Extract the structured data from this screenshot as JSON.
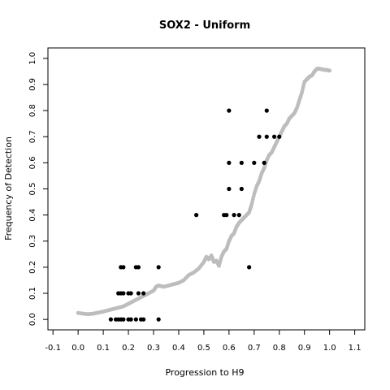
{
  "chart_data": {
    "type": "scatter",
    "title": "SOX2 - Uniform",
    "xlabel": "Progression to H9",
    "ylabel": "Frequency of Detection",
    "xlim": [
      -0.12,
      1.14
    ],
    "ylim": [
      -0.04,
      1.04
    ],
    "x_ticks": [
      "-0.1",
      "0.0",
      "0.1",
      "0.2",
      "0.3",
      "0.4",
      "0.5",
      "0.6",
      "0.7",
      "0.8",
      "0.9",
      "1.0",
      "1.1"
    ],
    "y_ticks": [
      "0.0",
      "0.1",
      "0.2",
      "0.3",
      "0.4",
      "0.5",
      "0.6",
      "0.7",
      "0.8",
      "0.9",
      "1.0"
    ],
    "grid": false,
    "legend": "none",
    "colors": {
      "curve": "#bdbdbd",
      "observations": "#000000"
    },
    "series": [
      {
        "values_x": [
          0.0,
          0.02,
          0.04,
          0.06,
          0.08,
          0.1,
          0.12,
          0.14,
          0.16,
          0.18,
          0.2,
          0.22,
          0.24,
          0.26,
          0.28,
          0.3,
          0.31,
          0.32,
          0.34,
          0.36,
          0.38,
          0.4,
          0.42,
          0.44,
          0.46,
          0.48,
          0.5,
          0.51,
          0.52,
          0.53,
          0.54,
          0.55,
          0.56,
          0.57,
          0.58,
          0.59,
          0.6,
          0.61,
          0.62,
          0.63,
          0.64,
          0.65,
          0.66,
          0.67,
          0.68,
          0.69,
          0.7,
          0.71,
          0.72,
          0.73,
          0.74,
          0.75,
          0.76,
          0.77,
          0.78,
          0.79,
          0.8,
          0.81,
          0.82,
          0.83,
          0.84,
          0.85,
          0.86,
          0.87,
          0.88,
          0.89,
          0.9,
          0.91,
          0.92,
          0.93,
          0.94,
          0.95,
          0.96,
          0.97,
          0.98,
          0.99,
          1.0
        ],
        "values_y": [
          0.025,
          0.022,
          0.02,
          0.022,
          0.026,
          0.03,
          0.035,
          0.04,
          0.045,
          0.05,
          0.06,
          0.07,
          0.08,
          0.09,
          0.1,
          0.11,
          0.125,
          0.13,
          0.125,
          0.13,
          0.135,
          0.14,
          0.15,
          0.17,
          0.18,
          0.195,
          0.22,
          0.24,
          0.23,
          0.245,
          0.22,
          0.225,
          0.205,
          0.24,
          0.26,
          0.27,
          0.3,
          0.32,
          0.33,
          0.355,
          0.37,
          0.38,
          0.39,
          0.4,
          0.41,
          0.44,
          0.48,
          0.51,
          0.53,
          0.56,
          0.58,
          0.61,
          0.63,
          0.64,
          0.66,
          0.68,
          0.7,
          0.72,
          0.74,
          0.75,
          0.77,
          0.78,
          0.79,
          0.81,
          0.84,
          0.87,
          0.91,
          0.92,
          0.93,
          0.935,
          0.95,
          0.96,
          0.96,
          0.958,
          0.956,
          0.955,
          0.953
        ]
      },
      {
        "points": [
          [
            0.13,
            0
          ],
          [
            0.15,
            0
          ],
          [
            0.16,
            0
          ],
          [
            0.17,
            0
          ],
          [
            0.18,
            0
          ],
          [
            0.2,
            0
          ],
          [
            0.21,
            0
          ],
          [
            0.23,
            0
          ],
          [
            0.25,
            0
          ],
          [
            0.26,
            0
          ],
          [
            0.32,
            0
          ],
          [
            0.16,
            0.1
          ],
          [
            0.17,
            0.1
          ],
          [
            0.18,
            0.1
          ],
          [
            0.2,
            0.1
          ],
          [
            0.21,
            0.1
          ],
          [
            0.24,
            0.1
          ],
          [
            0.26,
            0.1
          ],
          [
            0.17,
            0.2
          ],
          [
            0.18,
            0.2
          ],
          [
            0.23,
            0.2
          ],
          [
            0.24,
            0.2
          ],
          [
            0.32,
            0.2
          ],
          [
            0.68,
            0.2
          ],
          [
            0.47,
            0.4
          ],
          [
            0.58,
            0.4
          ],
          [
            0.59,
            0.4
          ],
          [
            0.62,
            0.4
          ],
          [
            0.64,
            0.4
          ],
          [
            0.6,
            0.5
          ],
          [
            0.65,
            0.5
          ],
          [
            0.6,
            0.6
          ],
          [
            0.65,
            0.6
          ],
          [
            0.7,
            0.6
          ],
          [
            0.74,
            0.6
          ],
          [
            0.72,
            0.7
          ],
          [
            0.75,
            0.7
          ],
          [
            0.78,
            0.7
          ],
          [
            0.8,
            0.7
          ],
          [
            0.6,
            0.8
          ],
          [
            0.75,
            0.8
          ]
        ]
      }
    ]
  }
}
